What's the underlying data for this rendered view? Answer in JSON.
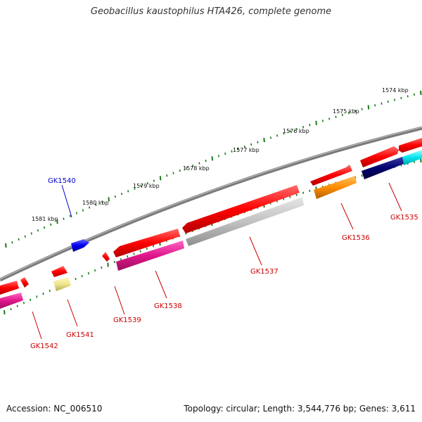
{
  "title": "Geobacillus kaustophilus HTA426, complete genome",
  "footer": {
    "accession": "Accession: NC_006510",
    "summary": "Topology: circular; Length: 3,544,776 bp; Genes: 3,611"
  },
  "colors": {
    "backbone": "#777777",
    "ticks": "#1a7a1a",
    "forward_label": "#0000cc",
    "reverse_label": "#cc0000"
  },
  "kbp_ticks": [
    {
      "kbp": 1574,
      "label": "1574 kbp"
    },
    {
      "kbp": 1575,
      "label": "1575 kbp"
    },
    {
      "kbp": 1576,
      "label": "1576 kbp"
    },
    {
      "kbp": 1577,
      "label": "1577 kbp"
    },
    {
      "kbp": 1578,
      "label": "1578 kbp"
    },
    {
      "kbp": 1579,
      "label": "1579 kbp"
    },
    {
      "kbp": 1580,
      "label": "1580 kbp"
    },
    {
      "kbp": 1581,
      "label": "1581 kbp"
    }
  ],
  "labeled_genes": [
    {
      "name": "GK1540",
      "strand": "forward",
      "color": "#0000ee"
    },
    {
      "name": "GK1535",
      "strand": "reverse",
      "color": "#ff0000"
    },
    {
      "name": "GK1536",
      "strand": "reverse",
      "color": "#ff8c00"
    },
    {
      "name": "GK1537",
      "strand": "reverse",
      "color": "#c0c0c0"
    },
    {
      "name": "GK1538",
      "strand": "reverse",
      "color": "#ee1493"
    },
    {
      "name": "GK1539",
      "strand": "reverse",
      "color": "#ff0000"
    },
    {
      "name": "GK1541",
      "strand": "reverse",
      "color": "#f0e68c"
    },
    {
      "name": "GK1542",
      "strand": "reverse",
      "color": "#ff0000"
    }
  ]
}
